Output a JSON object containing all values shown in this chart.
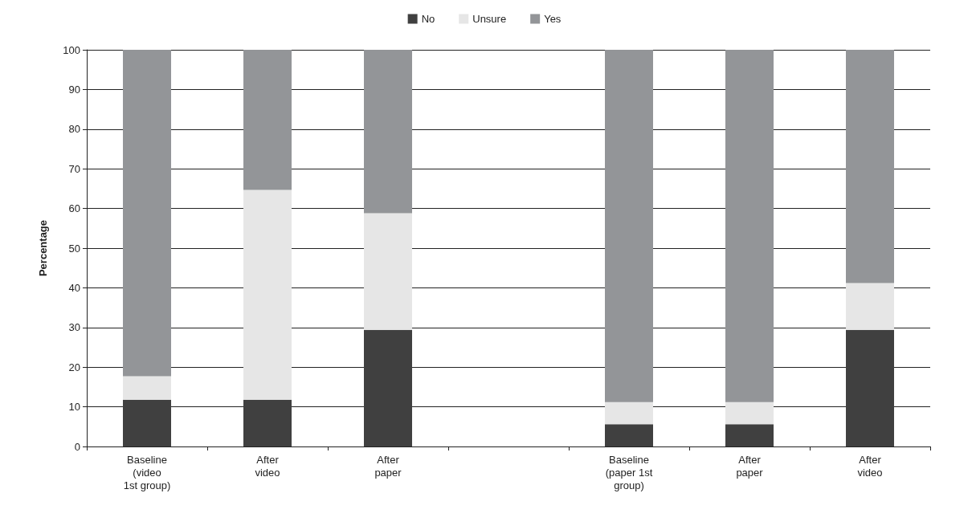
{
  "chart_data": {
    "type": "bar",
    "stacked": true,
    "ylabel": "Percentage",
    "categories": [
      "Baseline\n(video\n1st group)",
      "After\nvideo",
      "After\npaper",
      null,
      "Baseline\n(paper 1st\ngroup)",
      "After\npaper",
      "After\nvideo"
    ],
    "series": [
      {
        "name": "No",
        "color": "#404040",
        "values": [
          11.8,
          11.8,
          29.4,
          null,
          5.6,
          5.6,
          29.4
        ]
      },
      {
        "name": "Unsure",
        "color": "#e6e6e6",
        "values": [
          5.9,
          52.9,
          29.4,
          null,
          5.6,
          5.6,
          11.8
        ]
      },
      {
        "name": "Yes",
        "color": "#939598",
        "values": [
          82.3,
          35.3,
          41.2,
          null,
          88.8,
          88.8,
          58.8
        ]
      }
    ],
    "ylim": [
      0,
      100
    ],
    "yticks": [
      0,
      10,
      20,
      30,
      40,
      50,
      60,
      70,
      80,
      90,
      100
    ],
    "grid": "y",
    "legend": "top"
  }
}
